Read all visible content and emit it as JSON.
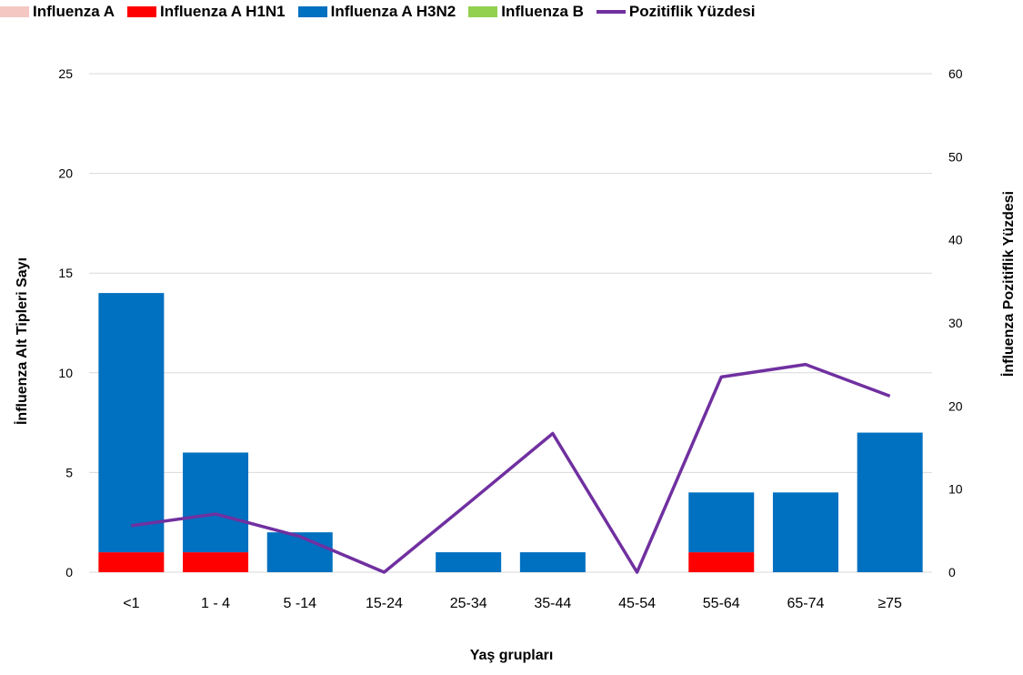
{
  "chart_data": {
    "type": "bar",
    "stacked": true,
    "xlabel": "Yaş grupları",
    "ylabel": "İnfluenza Alt Tipleri Sayı",
    "y2label": "İnfluenza Pozitiflik Yüzdesi",
    "categories": [
      "<1",
      "1 - 4",
      "5 -14",
      "15-24",
      "25-34",
      "35-44",
      "45-54",
      "55-64",
      "65-74",
      "≥75"
    ],
    "ylim": [
      0,
      25
    ],
    "yticks": [
      0,
      5,
      10,
      15,
      20,
      25
    ],
    "y2lim": [
      0,
      60
    ],
    "y2ticks": [
      0,
      10,
      20,
      30,
      40,
      50,
      60
    ],
    "grid": true,
    "legend_position": "top",
    "series": [
      {
        "name": "Influenza A",
        "kind": "bar",
        "axis": "left",
        "color": "#f4c7c3",
        "values": [
          0,
          0,
          0,
          0,
          0,
          0,
          0,
          0,
          0,
          0
        ]
      },
      {
        "name": "Influenza A H1N1",
        "kind": "bar",
        "axis": "left",
        "color": "#ff0000",
        "values": [
          1,
          1,
          0,
          0,
          0,
          0,
          0,
          1,
          0,
          0
        ]
      },
      {
        "name": "Influenza A H3N2",
        "kind": "bar",
        "axis": "left",
        "color": "#0070c0",
        "values": [
          13,
          5,
          2,
          0,
          1,
          1,
          0,
          3,
          4,
          7
        ]
      },
      {
        "name": "Influenza B",
        "kind": "bar",
        "axis": "left",
        "color": "#92d050",
        "values": [
          0,
          0,
          0,
          0,
          0,
          0,
          0,
          0,
          0,
          0
        ]
      },
      {
        "name": "Pozitiflik Yüzdesi",
        "kind": "line",
        "axis": "right",
        "color": "#7030a0",
        "values": [
          5.6,
          7.0,
          4.3,
          0,
          8.3,
          16.7,
          0,
          23.5,
          25.0,
          21.2
        ]
      }
    ]
  }
}
